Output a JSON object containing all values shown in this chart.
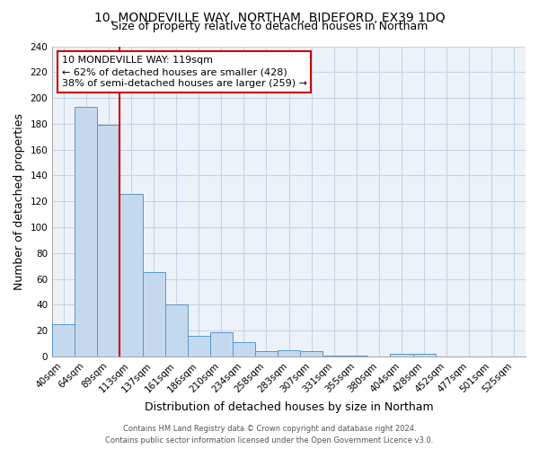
{
  "title": "10, MONDEVILLE WAY, NORTHAM, BIDEFORD, EX39 1DQ",
  "subtitle": "Size of property relative to detached houses in Northam",
  "xlabel": "Distribution of detached houses by size in Northam",
  "ylabel": "Number of detached properties",
  "bar_labels": [
    "40sqm",
    "64sqm",
    "89sqm",
    "113sqm",
    "137sqm",
    "161sqm",
    "186sqm",
    "210sqm",
    "234sqm",
    "258sqm",
    "283sqm",
    "307sqm",
    "331sqm",
    "355sqm",
    "380sqm",
    "404sqm",
    "428sqm",
    "452sqm",
    "477sqm",
    "501sqm",
    "525sqm"
  ],
  "bar_values": [
    25,
    193,
    179,
    126,
    65,
    40,
    16,
    19,
    11,
    4,
    5,
    4,
    1,
    1,
    0,
    2,
    2,
    0,
    0,
    0,
    0
  ],
  "bar_color": "#c5d9ee",
  "bar_edge_color": "#5b96c8",
  "vline_color": "#cc0000",
  "vline_x_index": 3,
  "ylim": [
    0,
    240
  ],
  "yticks": [
    0,
    20,
    40,
    60,
    80,
    100,
    120,
    140,
    160,
    180,
    200,
    220,
    240
  ],
  "annotation_line1": "10 MONDEVILLE WAY: 119sqm",
  "annotation_line2": "← 62% of detached houses are smaller (428)",
  "annotation_line3": "38% of semi-detached houses are larger (259) →",
  "footer_line1": "Contains HM Land Registry data © Crown copyright and database right 2024.",
  "footer_line2": "Contains public sector information licensed under the Open Government Licence v3.0.",
  "background_color": "#ffffff",
  "plot_bg_color": "#edf2f9",
  "grid_color": "#c8d4e4",
  "title_fontsize": 10,
  "subtitle_fontsize": 9,
  "axis_label_fontsize": 9,
  "tick_fontsize": 7.5,
  "annotation_fontsize": 8,
  "footer_fontsize": 6
}
